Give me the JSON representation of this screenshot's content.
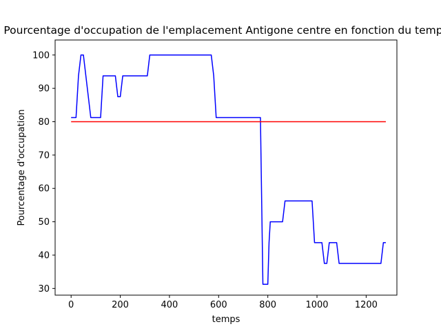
{
  "chart_data": {
    "type": "line",
    "title": "Pourcentage d'occupation de l'emplacement Antigone centre en fonction du temps",
    "xlabel": "temps",
    "ylabel": "Pourcentage d'occupation",
    "xlim": [
      -65,
      1325
    ],
    "ylim": [
      28,
      104.5
    ],
    "xticks": [
      0,
      200,
      400,
      600,
      800,
      1000,
      1200
    ],
    "yticks": [
      30,
      40,
      50,
      60,
      70,
      80,
      90,
      100
    ],
    "grid": false,
    "series": [
      {
        "color": "#0000ff",
        "points": [
          [
            0,
            81.25
          ],
          [
            20,
            81.25
          ],
          [
            30,
            93.75
          ],
          [
            40,
            100
          ],
          [
            50,
            100
          ],
          [
            80,
            81.25
          ],
          [
            120,
            81.25
          ],
          [
            130,
            93.75
          ],
          [
            180,
            93.75
          ],
          [
            190,
            87.5
          ],
          [
            200,
            87.5
          ],
          [
            210,
            93.75
          ],
          [
            310,
            93.75
          ],
          [
            320,
            100
          ],
          [
            570,
            100
          ],
          [
            580,
            93.75
          ],
          [
            590,
            81.25
          ],
          [
            770,
            81.25
          ],
          [
            780,
            31.25
          ],
          [
            800,
            31.25
          ],
          [
            805,
            43.75
          ],
          [
            810,
            50
          ],
          [
            860,
            50
          ],
          [
            870,
            56.25
          ],
          [
            980,
            56.25
          ],
          [
            990,
            43.75
          ],
          [
            1020,
            43.75
          ],
          [
            1030,
            37.5
          ],
          [
            1040,
            37.5
          ],
          [
            1050,
            43.75
          ],
          [
            1080,
            43.75
          ],
          [
            1090,
            37.5
          ],
          [
            1260,
            37.5
          ],
          [
            1270,
            43.75
          ],
          [
            1280,
            43.75
          ]
        ]
      },
      {
        "color": "#ff0000",
        "points": [
          [
            0,
            80
          ],
          [
            1280,
            80
          ]
        ]
      }
    ]
  }
}
